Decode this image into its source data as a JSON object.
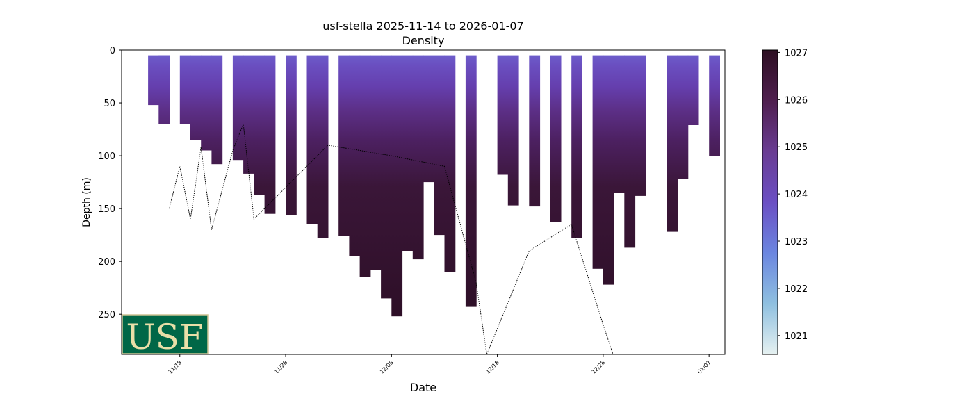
{
  "chart_data": {
    "type": "heatmap",
    "title": "usf-stella 2025-11-14 to 2026-01-07",
    "subtitle": "Density",
    "xlabel": "Date",
    "ylabel": "Depth (m)",
    "x_range": [
      "2025-11-12T12:00",
      "2026-01-08T12:00"
    ],
    "y_range": [
      288,
      0
    ],
    "y_inverted": true,
    "x_ticks": [
      "11/18",
      "11/28",
      "12/08",
      "12/18",
      "12/28",
      "01/07"
    ],
    "y_ticks": [
      0,
      50,
      100,
      150,
      200,
      250
    ],
    "colorbar": {
      "range": [
        1020.6,
        1027.05
      ],
      "ticks": [
        1021,
        1022,
        1023,
        1024,
        1025,
        1026,
        1027
      ],
      "colormap": "dense",
      "stops": [
        "#e6f1f1",
        "#8fc0e0",
        "#6b86e0",
        "#6b4fc4",
        "#6a3c93",
        "#4f1f4f",
        "#2d0f22"
      ]
    },
    "deployment_profiles": [
      {
        "date": "2025-11-15",
        "max_depth": 52
      },
      {
        "date": "2025-11-16",
        "max_depth": 52
      },
      {
        "date": "2025-11-16",
        "max_depth": 70
      },
      {
        "date": "2025-11-18",
        "max_depth": 70
      },
      {
        "date": "2025-11-19",
        "max_depth": 85
      },
      {
        "date": "2025-11-20",
        "max_depth": 95
      },
      {
        "date": "2025-11-21",
        "max_depth": 108
      },
      {
        "date": "2025-11-23",
        "max_depth": 104
      },
      {
        "date": "2025-11-24",
        "max_depth": 117
      },
      {
        "date": "2025-11-25",
        "max_depth": 137
      },
      {
        "date": "2025-11-26",
        "max_depth": 155
      },
      {
        "date": "2025-11-28",
        "max_depth": 156
      },
      {
        "date": "2025-11-30",
        "max_depth": 165
      },
      {
        "date": "2025-12-01",
        "max_depth": 178
      },
      {
        "date": "2025-12-03",
        "max_depth": 176
      },
      {
        "date": "2025-12-04",
        "max_depth": 195
      },
      {
        "date": "2025-12-05",
        "max_depth": 215
      },
      {
        "date": "2025-12-06",
        "max_depth": 208
      },
      {
        "date": "2025-12-07",
        "max_depth": 235
      },
      {
        "date": "2025-12-08",
        "max_depth": 252
      },
      {
        "date": "2025-12-09",
        "max_depth": 190
      },
      {
        "date": "2025-12-10",
        "max_depth": 198
      },
      {
        "date": "2025-12-11",
        "max_depth": 125
      },
      {
        "date": "2025-12-12",
        "max_depth": 175
      },
      {
        "date": "2025-12-13",
        "max_depth": 210
      },
      {
        "date": "2025-12-15",
        "max_depth": 243
      },
      {
        "date": "2025-12-18",
        "max_depth": 118
      },
      {
        "date": "2025-12-19",
        "max_depth": 147
      },
      {
        "date": "2025-12-21",
        "max_depth": 148
      },
      {
        "date": "2025-12-23",
        "max_depth": 163
      },
      {
        "date": "2025-12-25",
        "max_depth": 178
      },
      {
        "date": "2025-12-27",
        "max_depth": 207
      },
      {
        "date": "2025-12-28",
        "max_depth": 222
      },
      {
        "date": "2025-12-29",
        "max_depth": 135
      },
      {
        "date": "2025-12-30",
        "max_depth": 187
      },
      {
        "date": "2025-12-31",
        "max_depth": 138
      },
      {
        "date": "2026-01-03",
        "max_depth": 172
      },
      {
        "date": "2026-01-04",
        "max_depth": 122
      },
      {
        "date": "2026-01-05",
        "max_depth": 71
      },
      {
        "date": "2026-01-07",
        "max_depth": 100
      }
    ],
    "bathymetry": [
      {
        "date": "2025-11-17",
        "depth": 150
      },
      {
        "date": "2025-11-18",
        "depth": 110
      },
      {
        "date": "2025-11-19",
        "depth": 160
      },
      {
        "date": "2025-11-20",
        "depth": 92
      },
      {
        "date": "2025-11-21",
        "depth": 170
      },
      {
        "date": "2025-11-23",
        "depth": 95
      },
      {
        "date": "2025-11-24",
        "depth": 70
      },
      {
        "date": "2025-11-25",
        "depth": 160
      },
      {
        "date": "2025-12-02",
        "depth": 90
      },
      {
        "date": "2025-12-08",
        "depth": 100
      },
      {
        "date": "2025-12-13",
        "depth": 110
      },
      {
        "date": "2025-12-16",
        "depth": 220
      },
      {
        "date": "2025-12-17",
        "depth": 288
      },
      {
        "date": "2025-12-21",
        "depth": 190
      },
      {
        "date": "2025-12-25",
        "depth": 165
      },
      {
        "date": "2025-12-28",
        "depth": 260
      },
      {
        "date": "2025-12-29",
        "depth": 290
      }
    ],
    "logo": "USF",
    "grid": false
  }
}
